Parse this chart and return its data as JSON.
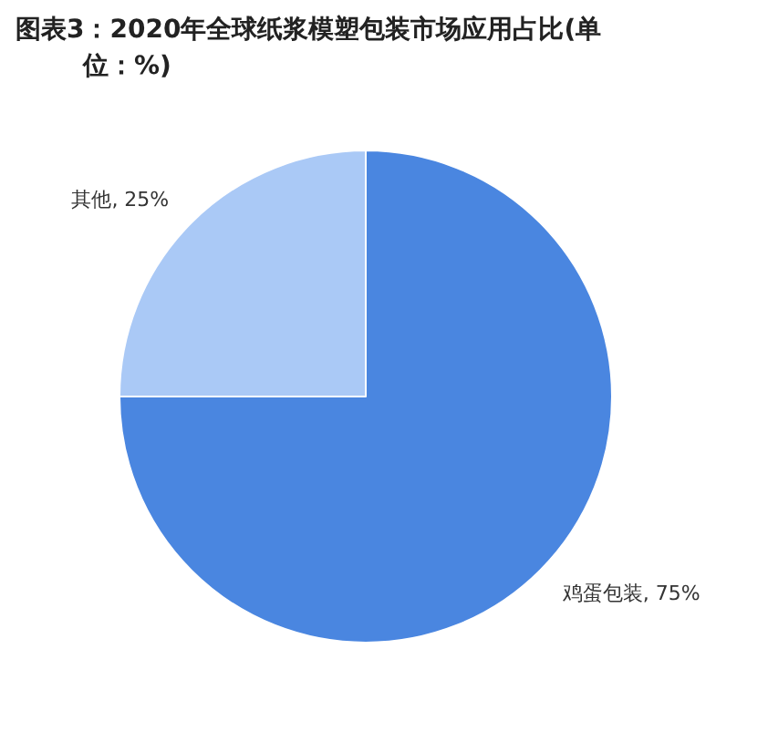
{
  "chart_data": {
    "type": "pie",
    "title": "图表3：2020年全球纸浆模塑包装市场应用占比(单位：%)",
    "categories": [
      "鸡蛋包装",
      "其他"
    ],
    "values": [
      75,
      25
    ],
    "value_labels": [
      "75%",
      "25%"
    ],
    "colors": [
      "#4a86e0",
      "#aac9f6"
    ],
    "legend": false
  }
}
